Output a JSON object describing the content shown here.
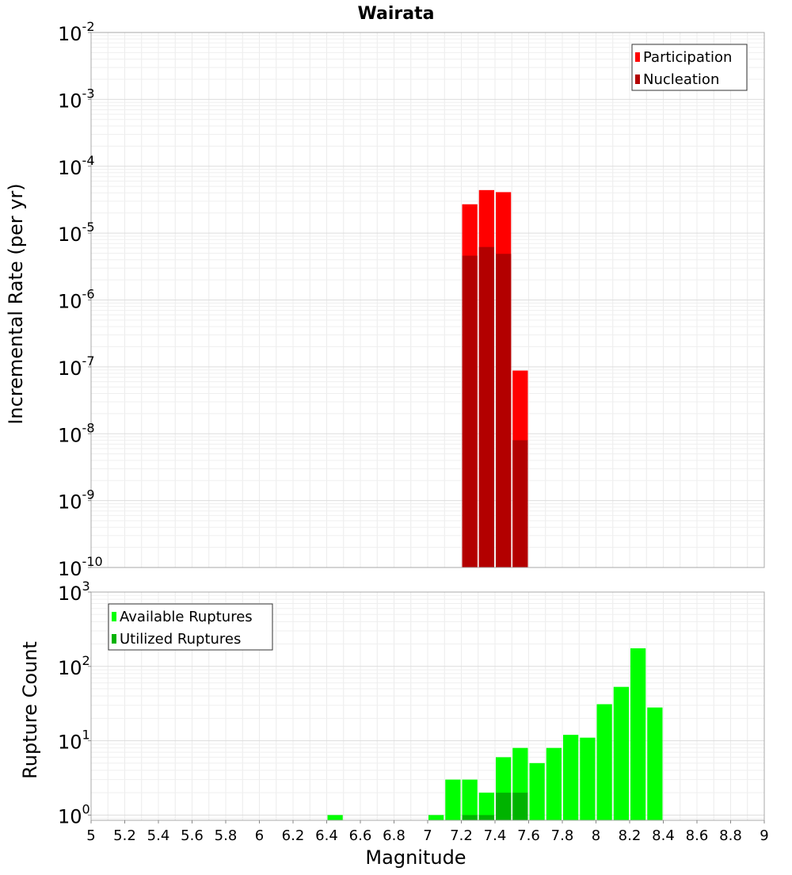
{
  "chart_data": [
    {
      "type": "bar",
      "title": "Wairata",
      "ylabel": "Incremental Rate (per yr)",
      "yscale": "log",
      "ylim": [
        1e-10,
        0.01
      ],
      "xlim": [
        5,
        9
      ],
      "bin_width": 0.1,
      "yticks": [
        {
          "base": "10",
          "exp": "-10",
          "value": 1e-10
        },
        {
          "base": "10",
          "exp": "-9",
          "value": 1e-09
        },
        {
          "base": "10",
          "exp": "-8",
          "value": 1e-08
        },
        {
          "base": "10",
          "exp": "-7",
          "value": 1e-07
        },
        {
          "base": "10",
          "exp": "-6",
          "value": 1e-06
        },
        {
          "base": "10",
          "exp": "-5",
          "value": 1e-05
        },
        {
          "base": "10",
          "exp": "-4",
          "value": 0.0001
        },
        {
          "base": "10",
          "exp": "-3",
          "value": 0.001
        },
        {
          "base": "10",
          "exp": "-2",
          "value": 0.01
        }
      ],
      "legend_position": "top-right",
      "grid": true,
      "series": [
        {
          "name": "Participation",
          "color": "#ff0000",
          "x": [
            7.25,
            7.35,
            7.45,
            7.55
          ],
          "values": [
            2.7e-05,
            4.4e-05,
            4.1e-05,
            8.8e-08
          ]
        },
        {
          "name": "Nucleation",
          "color": "#b30000",
          "x": [
            7.25,
            7.35,
            7.45,
            7.55
          ],
          "values": [
            4.6e-06,
            6.2e-06,
            4.9e-06,
            8e-09
          ]
        }
      ]
    },
    {
      "type": "bar",
      "ylabel": "Rupture Count",
      "xlabel": "Magnitude",
      "yscale": "log",
      "ylim": [
        0.85,
        1000
      ],
      "xlim": [
        5,
        9
      ],
      "bin_width": 0.1,
      "xticks": [
        "5",
        "5.2",
        "5.4",
        "5.6",
        "5.8",
        "6",
        "6.2",
        "6.4",
        "6.6",
        "6.8",
        "7",
        "7.2",
        "7.4",
        "7.6",
        "7.8",
        "8",
        "8.2",
        "8.4",
        "8.6",
        "8.8",
        "9"
      ],
      "yticks": [
        {
          "base": "10",
          "exp": "0",
          "value": 1
        },
        {
          "base": "10",
          "exp": "1",
          "value": 10
        },
        {
          "base": "10",
          "exp": "2",
          "value": 100
        },
        {
          "base": "10",
          "exp": "3",
          "value": 1000
        }
      ],
      "legend_position": "top-left",
      "grid": true,
      "series": [
        {
          "name": "Available Ruptures",
          "color": "#00ff00",
          "x": [
            6.45,
            7.05,
            7.15,
            7.25,
            7.35,
            7.45,
            7.55,
            7.65,
            7.75,
            7.85,
            7.95,
            8.05,
            8.15,
            8.25,
            8.35
          ],
          "values": [
            1,
            1,
            3,
            3,
            2,
            6,
            8,
            5,
            8,
            12,
            11,
            31,
            53,
            175,
            28
          ]
        },
        {
          "name": "Utilized Ruptures",
          "color": "#00b300",
          "x": [
            7.25,
            7.35,
            7.45,
            7.55
          ],
          "values": [
            1,
            1,
            2,
            2
          ]
        }
      ]
    }
  ]
}
